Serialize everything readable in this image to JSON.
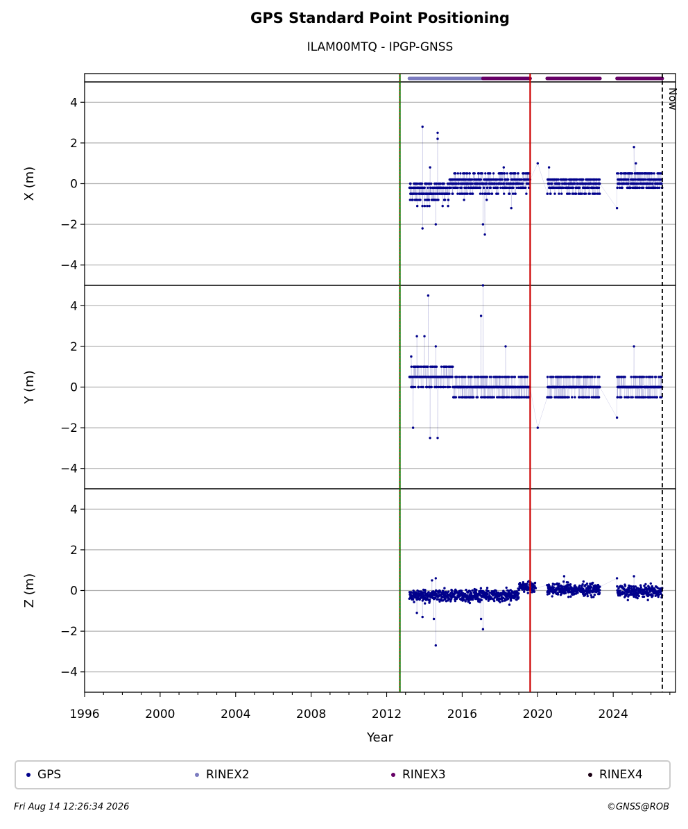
{
  "header": {
    "title": "GPS Standard Point Positioning",
    "subtitle": "ILAM00MTQ - IPGP-GNSS"
  },
  "footer": {
    "timestamp": "Fri Aug 14 12:26:34 2026",
    "copyright": "©GNSS@ROB"
  },
  "now_label": "Now",
  "colors": {
    "gps": "#00008b",
    "rinex2": "#7b7bbf",
    "rinex3": "#660066",
    "rinex4": "#1a0014",
    "green_marker": "#008000",
    "red_marker": "#cc0000",
    "grid": "#b0b0b0"
  },
  "legend": [
    {
      "label": "GPS",
      "color": "#00008b"
    },
    {
      "label": "RINEX2",
      "color": "#7b7bbf"
    },
    {
      "label": "RINEX3",
      "color": "#660066"
    },
    {
      "label": "RINEX4",
      "color": "#1a0014"
    }
  ],
  "chart_data": {
    "type": "scatter",
    "xlabel": "Year",
    "xlim": [
      1996,
      2027.3
    ],
    "xticks": [
      1996,
      2000,
      2004,
      2008,
      2012,
      2016,
      2020,
      2024
    ],
    "ylim": [
      -5,
      5
    ],
    "yticks": [
      -4,
      -2,
      0,
      2,
      4
    ],
    "grid": true,
    "legend_position": "bottom",
    "vertical_markers": [
      {
        "x": 2012.7,
        "color": "#008000",
        "style": "solid-with-dotted-red"
      },
      {
        "x": 2019.6,
        "color": "#cc0000",
        "style": "solid"
      },
      {
        "x": 2026.6,
        "color": "#000000",
        "style": "dashed",
        "label": "Now"
      }
    ],
    "availability": [
      {
        "format": "RINEX2",
        "start": 2013.2,
        "end": 2017.1
      },
      {
        "format": "RINEX3",
        "start": 2017.1,
        "end": 2019.6
      },
      {
        "format": "RINEX3",
        "start": 2020.5,
        "end": 2023.3
      },
      {
        "format": "RINEX3",
        "start": 2024.2,
        "end": 2026.6
      }
    ],
    "panels": [
      {
        "ylabel": "X (m)",
        "series": [
          {
            "name": "GPS",
            "segments": [
              {
                "start": 2013.2,
                "end": 2015.3,
                "levels": [
                  0.0,
                  -0.2,
                  -0.5,
                  -0.8,
                  -1.1
                ],
                "base": -0.4
              },
              {
                "start": 2015.3,
                "end": 2019.6,
                "levels": [
                  0.5,
                  0.2,
                  0.0,
                  -0.2,
                  -0.5
                ],
                "base": 0.05
              },
              {
                "start": 2020.5,
                "end": 2023.3,
                "levels": [
                  0.2,
                  0.0,
                  -0.2,
                  -0.5
                ],
                "base": -0.05
              },
              {
                "start": 2024.2,
                "end": 2026.6,
                "levels": [
                  0.5,
                  0.2,
                  0.0,
                  -0.2
                ],
                "base": 0.15
              }
            ],
            "outliers": [
              [
                2013.9,
                2.8
              ],
              [
                2014.7,
                2.5
              ],
              [
                2014.7,
                2.2
              ],
              [
                2014.3,
                0.8
              ],
              [
                2013.9,
                -2.2
              ],
              [
                2014.6,
                -2.0
              ],
              [
                2017.1,
                -2.0
              ],
              [
                2017.2,
                -2.5
              ],
              [
                2018.2,
                0.8
              ],
              [
                2018.6,
                -1.2
              ],
              [
                2020.0,
                1.0
              ],
              [
                2020.6,
                0.8
              ],
              [
                2024.2,
                -1.2
              ],
              [
                2025.1,
                1.8
              ],
              [
                2025.2,
                1.0
              ],
              [
                2017.3,
                -0.8
              ],
              [
                2016.1,
                -0.8
              ]
            ]
          }
        ]
      },
      {
        "ylabel": "Y (m)",
        "series": [
          {
            "name": "GPS",
            "segments": [
              {
                "start": 2013.2,
                "end": 2015.5,
                "levels": [
                  1.5,
                  1.0,
                  0.5,
                  0.0,
                  -0.5
                ],
                "base": 0.5
              },
              {
                "start": 2015.5,
                "end": 2019.6,
                "levels": [
                  1.0,
                  0.5,
                  0.0,
                  -0.5,
                  -1.0
                ],
                "base": 0.0
              },
              {
                "start": 2020.5,
                "end": 2023.3,
                "levels": [
                  1.0,
                  0.5,
                  0.0,
                  -0.5,
                  -1.0
                ],
                "base": 0.0
              },
              {
                "start": 2024.2,
                "end": 2026.6,
                "levels": [
                  1.0,
                  0.5,
                  0.0,
                  -0.5
                ],
                "base": 0.0
              }
            ],
            "outliers": [
              [
                2013.6,
                2.5
              ],
              [
                2014.0,
                2.5
              ],
              [
                2014.2,
                4.5
              ],
              [
                2013.4,
                -2.0
              ],
              [
                2014.3,
                -2.5
              ],
              [
                2014.7,
                -2.5
              ],
              [
                2017.0,
                3.5
              ],
              [
                2017.1,
                5.0
              ],
              [
                2018.3,
                2.0
              ],
              [
                2020.0,
                -2.0
              ],
              [
                2024.2,
                -1.5
              ],
              [
                2025.1,
                2.0
              ],
              [
                2014.6,
                2.0
              ],
              [
                2013.3,
                1.5
              ]
            ]
          }
        ]
      },
      {
        "ylabel": "Z (m)",
        "series": [
          {
            "name": "GPS",
            "segments": [
              {
                "start": 2013.2,
                "end": 2019.0,
                "levels": [],
                "base": -0.25,
                "spread": 0.3
              },
              {
                "start": 2019.0,
                "end": 2019.9,
                "levels": [],
                "base": 0.2,
                "spread": 0.25
              },
              {
                "start": 2020.5,
                "end": 2023.3,
                "levels": [],
                "base": 0.05,
                "spread": 0.3
              },
              {
                "start": 2024.2,
                "end": 2026.6,
                "levels": [],
                "base": -0.05,
                "spread": 0.3
              }
            ],
            "outliers": [
              [
                2013.6,
                -1.1
              ],
              [
                2013.9,
                -1.3
              ],
              [
                2014.5,
                -1.4
              ],
              [
                2014.6,
                -2.7
              ],
              [
                2017.0,
                -1.4
              ],
              [
                2017.1,
                -1.9
              ],
              [
                2014.6,
                0.6
              ],
              [
                2014.4,
                0.5
              ],
              [
                2021.4,
                0.7
              ],
              [
                2025.1,
                0.7
              ],
              [
                2024.2,
                0.6
              ],
              [
                2018.5,
                -0.7
              ]
            ]
          }
        ]
      }
    ]
  }
}
